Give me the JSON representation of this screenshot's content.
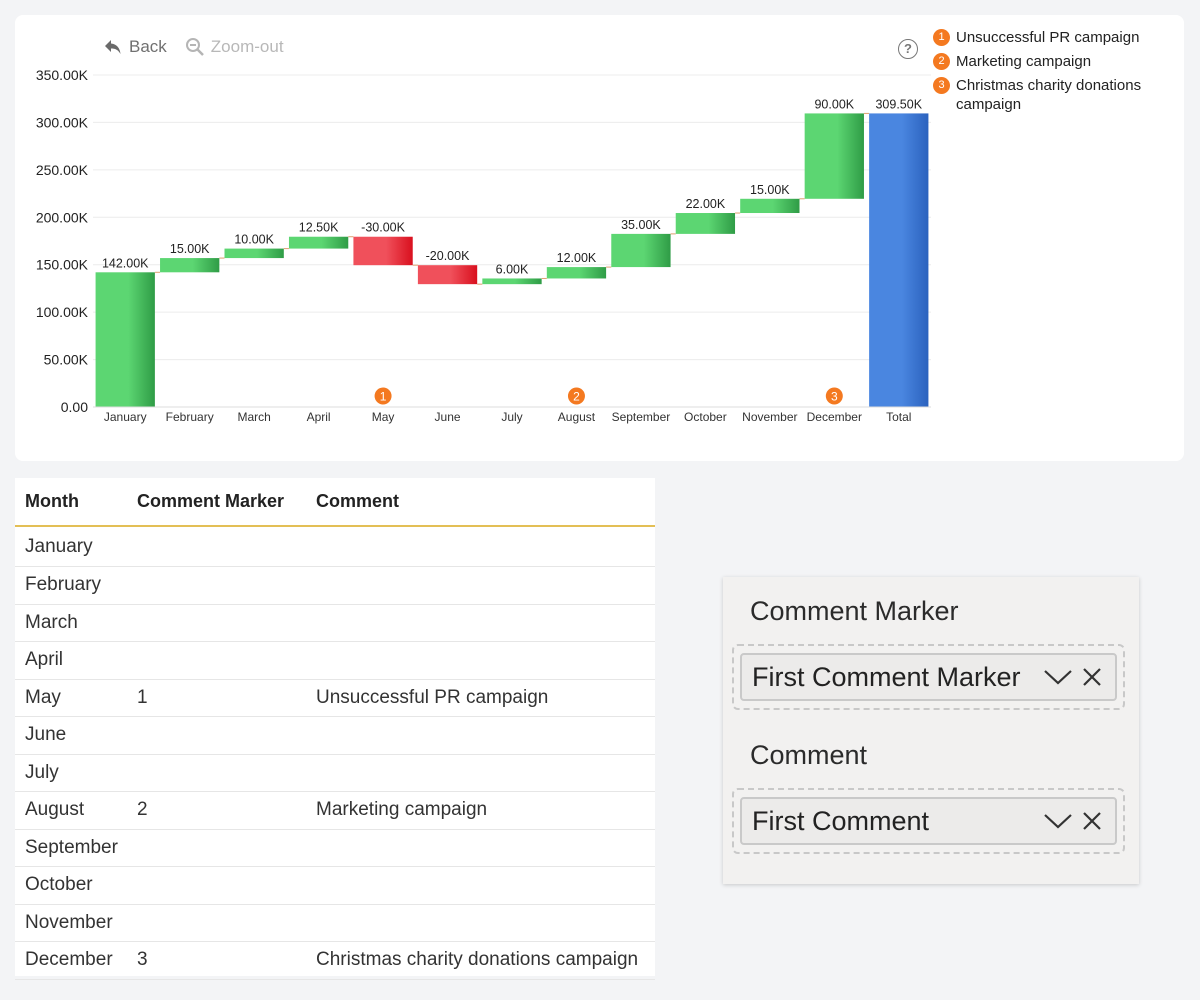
{
  "toolbar": {
    "back_label": "Back",
    "zoom_out_label": "Zoom-out"
  },
  "help_label": "?",
  "legend": [
    {
      "marker": "1",
      "text": "Unsuccessful PR campaign"
    },
    {
      "marker": "2",
      "text": "Marketing campaign"
    },
    {
      "marker": "3",
      "text": "Christmas charity donations campaign"
    }
  ],
  "chart_data": {
    "type": "waterfall",
    "categories": [
      "January",
      "February",
      "March",
      "April",
      "May",
      "June",
      "July",
      "August",
      "September",
      "October",
      "November",
      "December",
      "Total"
    ],
    "values": [
      142.0,
      15.0,
      10.0,
      12.5,
      -30.0,
      -20.0,
      6.0,
      12.0,
      35.0,
      22.0,
      15.0,
      90.0,
      309.5
    ],
    "data_labels": [
      "142.00K",
      "15.00K",
      "10.00K",
      "12.50K",
      "-30.00K",
      "-20.00K",
      "6.00K",
      "12.00K",
      "35.00K",
      "22.00K",
      "15.00K",
      "90.00K",
      "309.50K"
    ],
    "y_ticks": [
      "0.00",
      "50.00K",
      "100.00K",
      "150.00K",
      "200.00K",
      "250.00K",
      "300.00K",
      "350.00K"
    ],
    "ylim": [
      0,
      350
    ],
    "comment_markers": [
      {
        "category": "May",
        "marker": "1"
      },
      {
        "category": "August",
        "marker": "2"
      },
      {
        "category": "December",
        "marker": "3"
      }
    ],
    "colors": {
      "increase": "#5cd672",
      "decrease": "#f0505b",
      "total": "#4a86e0",
      "marker": "#f47920"
    },
    "legend_position": "top-right"
  },
  "table": {
    "headers": [
      "Month",
      "Comment Marker",
      "Comment"
    ],
    "rows": [
      [
        "January",
        "",
        ""
      ],
      [
        "February",
        "",
        ""
      ],
      [
        "March",
        "",
        ""
      ],
      [
        "April",
        "",
        ""
      ],
      [
        "May",
        "1",
        "Unsuccessful PR campaign"
      ],
      [
        "June",
        "",
        ""
      ],
      [
        "July",
        "",
        ""
      ],
      [
        "August",
        "2",
        "Marketing campaign"
      ],
      [
        "September",
        "",
        ""
      ],
      [
        "October",
        "",
        ""
      ],
      [
        "November",
        "",
        ""
      ],
      [
        "December",
        "3",
        "Christmas charity donations campaign"
      ]
    ]
  },
  "slicers": {
    "marker": {
      "title": "Comment Marker",
      "value": "First Comment Marker"
    },
    "comment": {
      "title": "Comment",
      "value": "First Comment"
    }
  }
}
